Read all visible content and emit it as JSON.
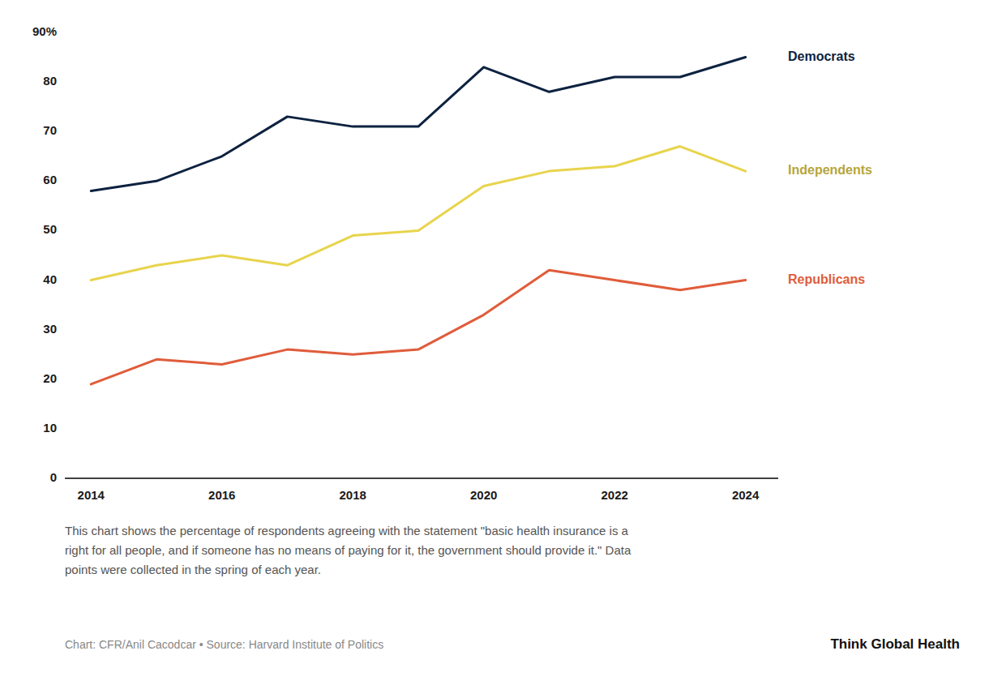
{
  "chart_data": {
    "type": "line",
    "x": [
      2014,
      2015,
      2016,
      2017,
      2018,
      2019,
      2020,
      2021,
      2022,
      2023,
      2024
    ],
    "series": [
      {
        "name": "Democrats",
        "color": "#0d2240",
        "values": [
          58,
          60,
          65,
          73,
          71,
          71,
          83,
          78,
          81,
          81,
          85
        ]
      },
      {
        "name": "Independents",
        "color": "#e8d44d",
        "values": [
          40,
          43,
          45,
          43,
          49,
          50,
          59,
          62,
          63,
          67,
          62
        ]
      },
      {
        "name": "Republicans",
        "color": "#e05c3a",
        "values": [
          19,
          24,
          23,
          26,
          25,
          26,
          33,
          42,
          40,
          38,
          40
        ]
      }
    ],
    "xlim": [
      2013.6,
      2024.5
    ],
    "xticks": [
      2014,
      2016,
      2018,
      2020,
      2022,
      2024
    ],
    "ylim": [
      0,
      90
    ],
    "yticks": [
      0,
      10,
      20,
      30,
      40,
      50,
      60,
      70,
      80,
      {
        "value": 90,
        "label": "90%"
      }
    ],
    "grid": false,
    "caption": [
      "This chart shows the percentage of respondents agreeing with the statement \"basic health insurance is a",
      "right for all people, and if someone has no means of paying for it, the government should provide it.\" Data",
      "points were collected in the spring of each year."
    ],
    "source": "Chart: CFR/Anil Cacodcar • Source: Harvard Institute of Politics",
    "credit": "Think Global Health"
  }
}
